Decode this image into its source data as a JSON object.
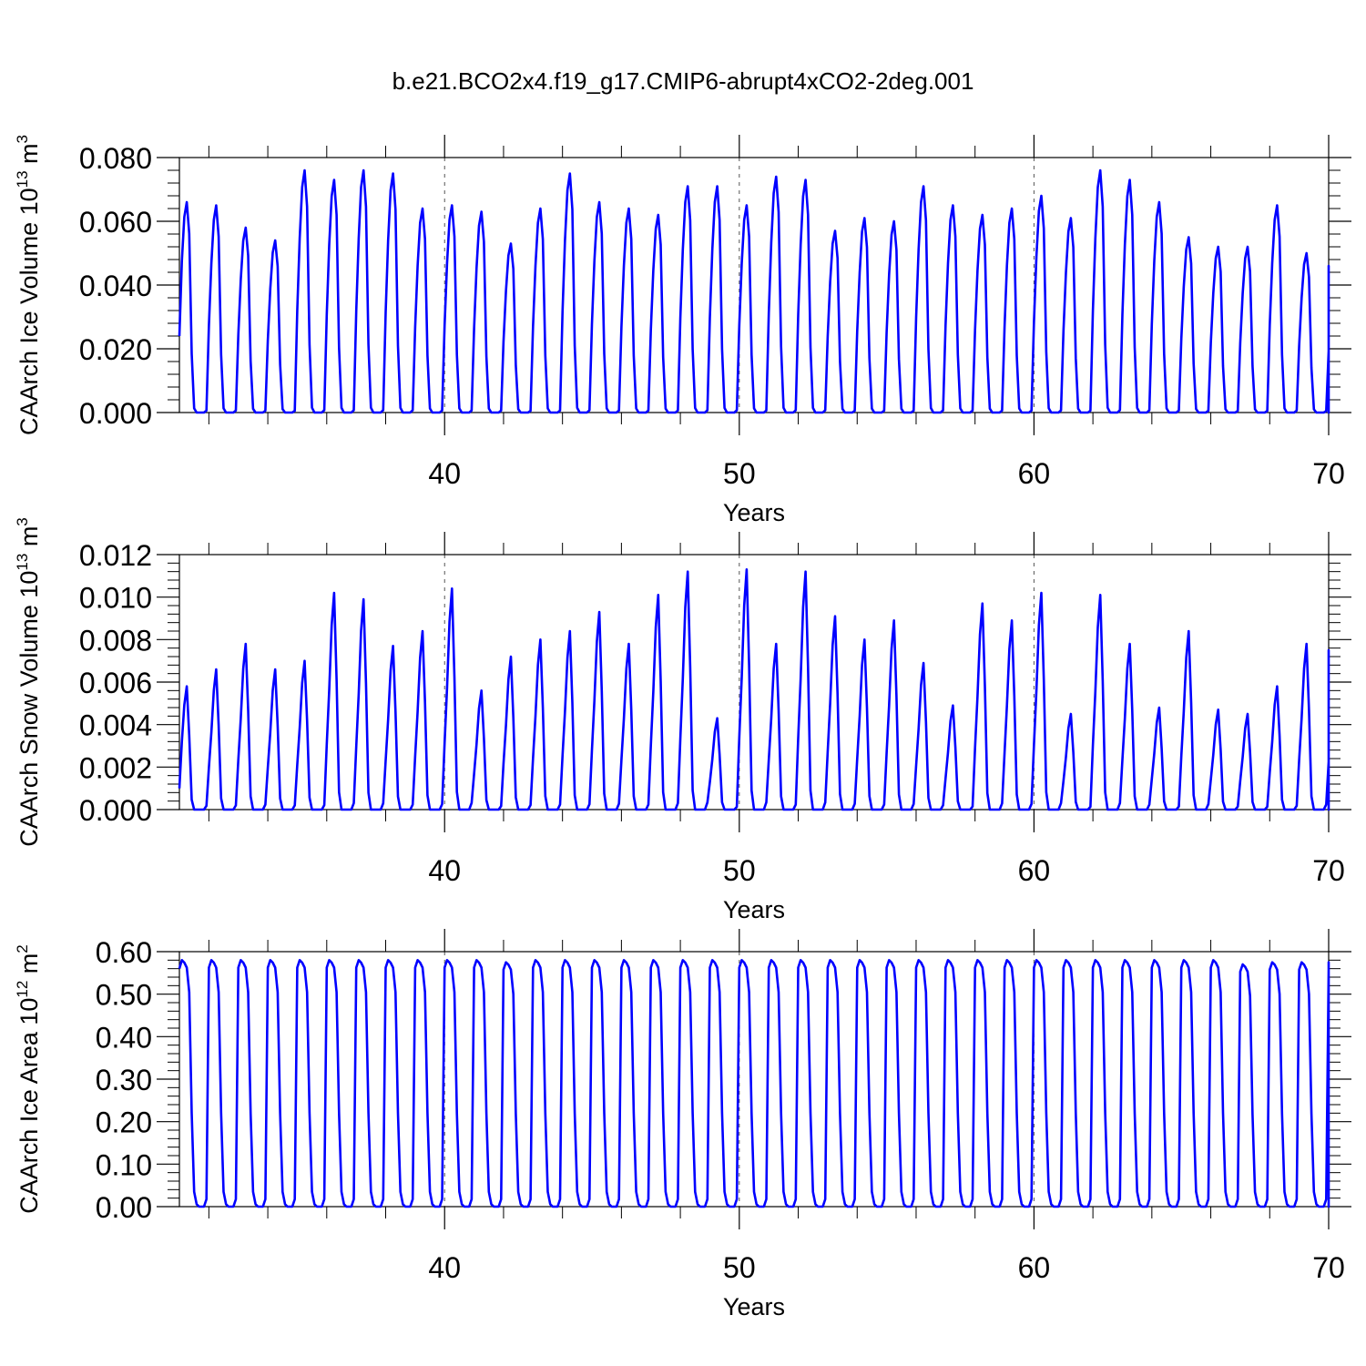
{
  "title": "b.e21.BCO2x4.f19_g17.CMIP6-abrupt4xCO2-2deg.001",
  "colors": {
    "series": "#0000ff",
    "axis": "#000000",
    "grid": "#555555"
  },
  "chart_data": [
    {
      "type": "line",
      "name": "ice-volume",
      "ylabel": {
        "text": "CAArch Ice Volume 10",
        "sup": "13",
        "unit": " m",
        "unit_sup": "3"
      },
      "xlabel": "Years",
      "xlim": [
        31,
        70
      ],
      "ylim": [
        0,
        0.08
      ],
      "yticks": [
        0.0,
        0.02,
        0.04,
        0.06,
        0.08
      ],
      "ytick_labels": [
        "0.000",
        "0.020",
        "0.040",
        "0.060",
        "0.080"
      ],
      "xticks": [
        40,
        50,
        60,
        70
      ],
      "xtick_labels": [
        "40",
        "50",
        "60",
        "70"
      ],
      "grid_x": [
        40,
        50,
        60
      ],
      "series": [
        {
          "name": "CAArch Ice Volume",
          "start_year": 31,
          "first_value": 0.024,
          "yearly_peaks": [
            0.066,
            0.065,
            0.058,
            0.054,
            0.076,
            0.073,
            0.076,
            0.075,
            0.064,
            0.065,
            0.063,
            0.053,
            0.064,
            0.075,
            0.066,
            0.064,
            0.062,
            0.071,
            0.071,
            0.065,
            0.074,
            0.073,
            0.057,
            0.061,
            0.06,
            0.071,
            0.065,
            0.062,
            0.064,
            0.068,
            0.061,
            0.076,
            0.073,
            0.066,
            0.055,
            0.052,
            0.052,
            0.065,
            0.05,
            0.046
          ]
        }
      ]
    },
    {
      "type": "line",
      "name": "snow-volume",
      "ylabel": {
        "text": "CAArch Snow Volume 10",
        "sup": "13",
        "unit": " m",
        "unit_sup": "3"
      },
      "xlabel": "Years",
      "xlim": [
        31,
        70
      ],
      "ylim": [
        0,
        0.012
      ],
      "yticks": [
        0.0,
        0.002,
        0.004,
        0.006,
        0.008,
        0.01,
        0.012
      ],
      "ytick_labels": [
        "0.000",
        "0.002",
        "0.004",
        "0.006",
        "0.008",
        "0.010",
        "0.012"
      ],
      "xticks": [
        40,
        50,
        60,
        70
      ],
      "xtick_labels": [
        "40",
        "50",
        "60",
        "70"
      ],
      "grid_x": [
        40,
        50,
        60
      ],
      "series": [
        {
          "name": "CAArch Snow Volume",
          "start_year": 31,
          "first_value": 0.001,
          "yearly_peaks": [
            0.0058,
            0.0066,
            0.0078,
            0.0066,
            0.007,
            0.0102,
            0.0099,
            0.0077,
            0.0084,
            0.0104,
            0.0056,
            0.0072,
            0.008,
            0.0084,
            0.0093,
            0.0078,
            0.0101,
            0.0112,
            0.0043,
            0.0113,
            0.0078,
            0.0112,
            0.0091,
            0.008,
            0.0089,
            0.0069,
            0.0049,
            0.0097,
            0.0089,
            0.0102,
            0.0045,
            0.0101,
            0.0078,
            0.0048,
            0.0084,
            0.0047,
            0.0045,
            0.0058,
            0.0078,
            0.0075
          ]
        }
      ]
    },
    {
      "type": "line",
      "name": "ice-area",
      "ylabel": {
        "text": "CAArch Ice Area 10",
        "sup": "12",
        "unit": " m",
        "unit_sup": "2"
      },
      "xlabel": "Years",
      "xlim": [
        31,
        70
      ],
      "ylim": [
        0,
        0.6
      ],
      "yticks": [
        0.0,
        0.1,
        0.2,
        0.3,
        0.4,
        0.5,
        0.6
      ],
      "ytick_labels": [
        "0.00",
        "0.10",
        "0.20",
        "0.30",
        "0.40",
        "0.50",
        "0.60"
      ],
      "xticks": [
        40,
        50,
        60,
        70
      ],
      "xtick_labels": [
        "40",
        "50",
        "60",
        "70"
      ],
      "grid_x": [
        40,
        50,
        60
      ],
      "series": [
        {
          "name": "CAArch Ice Area",
          "start_year": 31,
          "first_value": 0.56,
          "yearly_peaks": [
            0.58,
            0.58,
            0.58,
            0.58,
            0.58,
            0.58,
            0.58,
            0.58,
            0.58,
            0.58,
            0.58,
            0.575,
            0.58,
            0.58,
            0.58,
            0.58,
            0.58,
            0.58,
            0.58,
            0.58,
            0.58,
            0.58,
            0.58,
            0.58,
            0.58,
            0.58,
            0.58,
            0.58,
            0.58,
            0.58,
            0.58,
            0.58,
            0.58,
            0.58,
            0.58,
            0.58,
            0.57,
            0.575,
            0.575,
            0.575
          ]
        }
      ]
    }
  ]
}
